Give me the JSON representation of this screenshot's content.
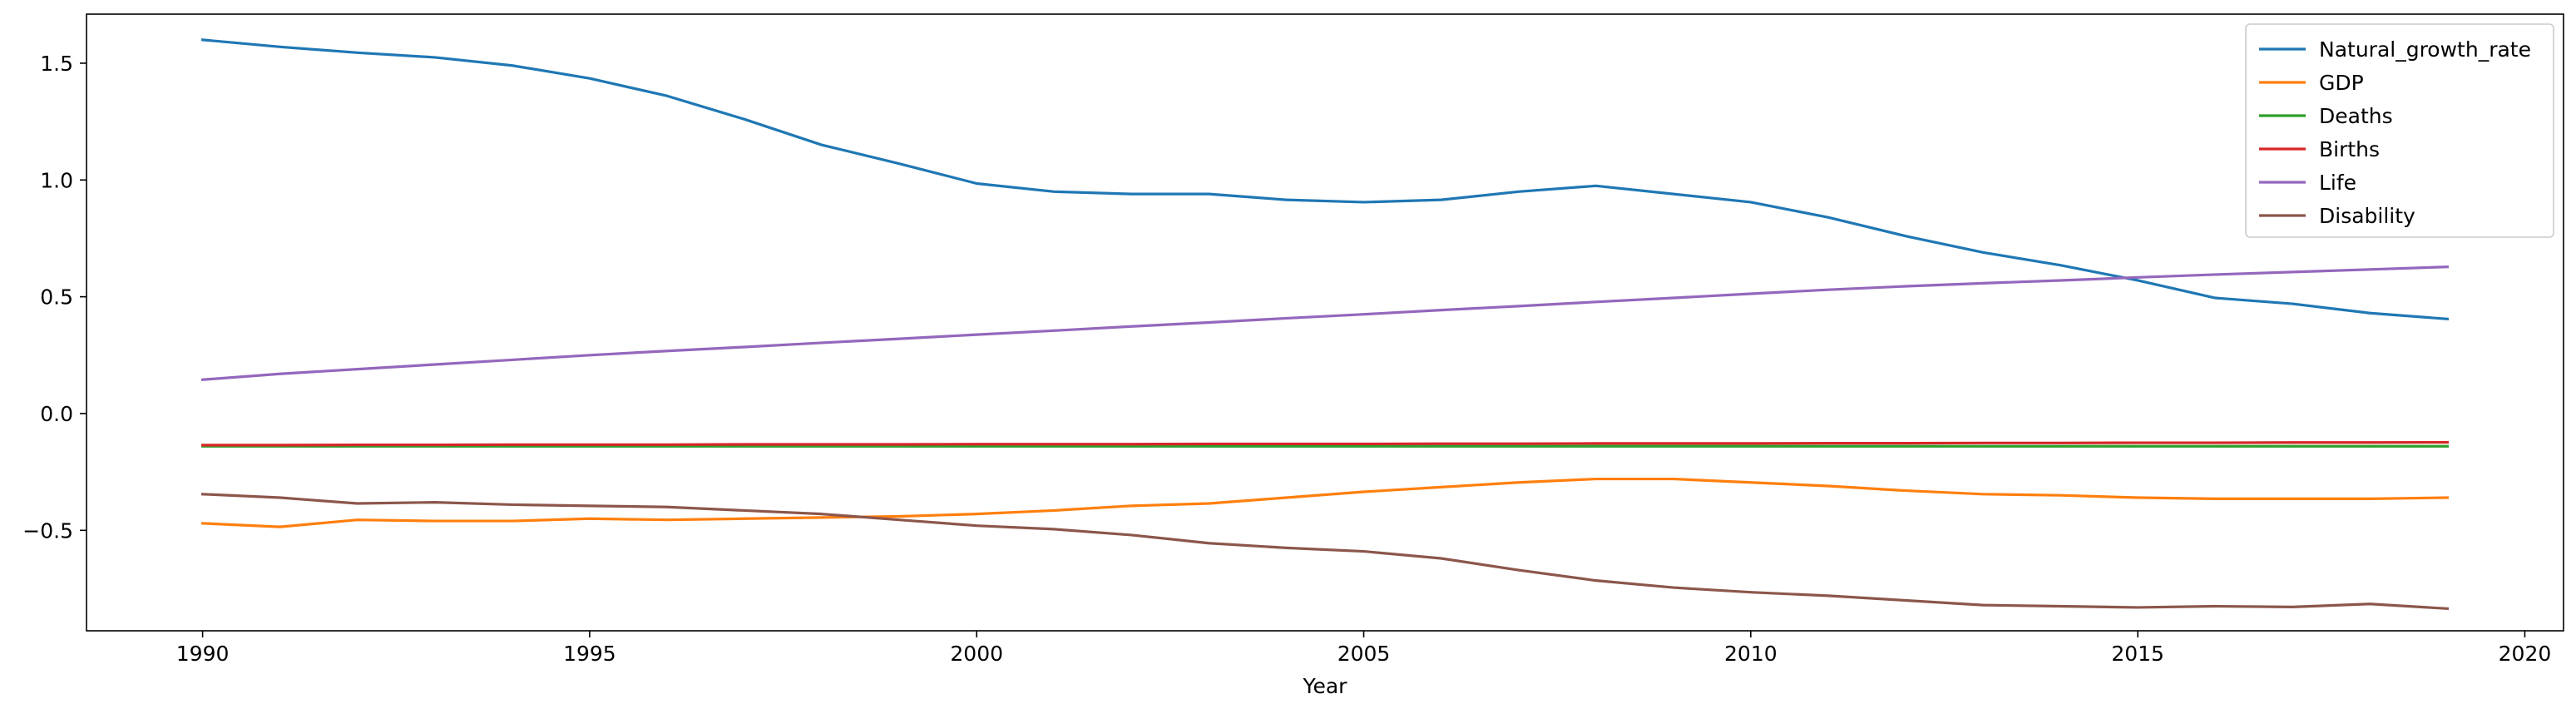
{
  "chart_data": {
    "type": "line",
    "title": "",
    "xlabel": "Year",
    "ylabel": "",
    "xlim": [
      1988.5,
      2020.5
    ],
    "ylim": [
      -0.93,
      1.71
    ],
    "xticks": [
      1990,
      1995,
      2000,
      2005,
      2010,
      2015,
      2020
    ],
    "yticks": [
      -0.5,
      0.0,
      0.5,
      1.0,
      1.5
    ],
    "grid": false,
    "legend_position": "top-right",
    "x": [
      1990,
      1991,
      1992,
      1993,
      1994,
      1995,
      1996,
      1997,
      1998,
      1999,
      2000,
      2001,
      2002,
      2003,
      2004,
      2005,
      2006,
      2007,
      2008,
      2009,
      2010,
      2011,
      2012,
      2013,
      2014,
      2015,
      2016,
      2017,
      2018,
      2019
    ],
    "series": [
      {
        "name": "Natural_growth_rate",
        "color": "#1f77b4",
        "values": [
          1.6,
          1.57,
          1.545,
          1.525,
          1.49,
          1.435,
          1.36,
          1.26,
          1.15,
          1.07,
          0.985,
          0.95,
          0.94,
          0.94,
          0.915,
          0.905,
          0.915,
          0.95,
          0.975,
          0.94,
          0.905,
          0.84,
          0.76,
          0.69,
          0.635,
          0.57,
          0.495,
          0.47,
          0.43,
          0.405
        ]
      },
      {
        "name": "GDP",
        "color": "#ff7f0e",
        "values": [
          -0.47,
          -0.485,
          -0.455,
          -0.46,
          -0.46,
          -0.45,
          -0.455,
          -0.45,
          -0.445,
          -0.44,
          -0.43,
          -0.415,
          -0.395,
          -0.385,
          -0.36,
          -0.335,
          -0.315,
          -0.295,
          -0.28,
          -0.28,
          -0.295,
          -0.31,
          -0.33,
          -0.345,
          -0.35,
          -0.36,
          -0.365,
          -0.365,
          -0.365,
          -0.36
        ]
      },
      {
        "name": "Deaths",
        "color": "#2ca02c",
        "values": [
          -0.14,
          -0.14,
          -0.14,
          -0.14,
          -0.14,
          -0.14,
          -0.14,
          -0.14,
          -0.14,
          -0.14,
          -0.14,
          -0.14,
          -0.14,
          -0.14,
          -0.14,
          -0.14,
          -0.14,
          -0.14,
          -0.14,
          -0.14,
          -0.14,
          -0.14,
          -0.14,
          -0.14,
          -0.14,
          -0.14,
          -0.14,
          -0.14,
          -0.14,
          -0.14
        ]
      },
      {
        "name": "Births",
        "color": "#d62728",
        "values": [
          -0.135,
          -0.135,
          -0.134,
          -0.134,
          -0.133,
          -0.133,
          -0.133,
          -0.132,
          -0.132,
          -0.132,
          -0.131,
          -0.131,
          -0.131,
          -0.13,
          -0.13,
          -0.13,
          -0.129,
          -0.129,
          -0.128,
          -0.128,
          -0.128,
          -0.127,
          -0.127,
          -0.126,
          -0.126,
          -0.125,
          -0.125,
          -0.124,
          -0.124,
          -0.123
        ]
      },
      {
        "name": "Life",
        "color": "#9467bd",
        "values": [
          0.145,
          0.17,
          0.19,
          0.21,
          0.23,
          0.25,
          0.268,
          0.285,
          0.303,
          0.32,
          0.338,
          0.355,
          0.373,
          0.39,
          0.408,
          0.425,
          0.443,
          0.46,
          0.478,
          0.495,
          0.513,
          0.53,
          0.545,
          0.558,
          0.57,
          0.583,
          0.595,
          0.606,
          0.617,
          0.628
        ]
      },
      {
        "name": "Disability",
        "color": "#8c564b",
        "values": [
          -0.345,
          -0.36,
          -0.385,
          -0.38,
          -0.39,
          -0.395,
          -0.4,
          -0.415,
          -0.43,
          -0.455,
          -0.48,
          -0.495,
          -0.52,
          -0.555,
          -0.575,
          -0.59,
          -0.62,
          -0.67,
          -0.715,
          -0.745,
          -0.765,
          -0.78,
          -0.8,
          -0.82,
          -0.825,
          -0.83,
          -0.825,
          -0.828,
          -0.815,
          -0.835
        ]
      }
    ]
  }
}
